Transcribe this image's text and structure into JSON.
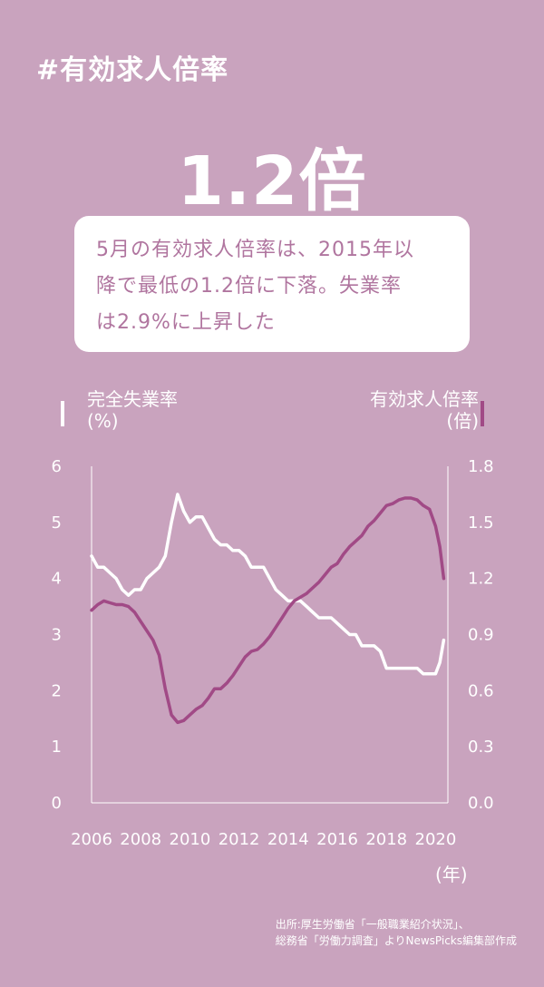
{
  "hashtag": "#有効求人倍率",
  "headline": "1.2倍",
  "summary": {
    "lines": [
      "5月の有効求人倍率は、2015年以",
      "降で最低の1.2倍に下落。失業率",
      "は2.9%に上昇した"
    ]
  },
  "legend": {
    "left": {
      "label": "完全失業率",
      "unit": "(%)"
    },
    "right": {
      "label": "有効求人倍率",
      "unit": "(倍)"
    }
  },
  "x_unit": "(年)",
  "source": {
    "line1": "出所:厚生労働省「一般職業紹介状況」、",
    "line2": "総務省「労働力調査」よりNewsPicks編集部作成"
  },
  "chart_data": {
    "type": "line",
    "x_ticks": [
      "2006",
      "2008",
      "2010",
      "2012",
      "2014",
      "2016",
      "2018",
      "2020"
    ],
    "xlim": [
      2006,
      2020.5
    ],
    "y_left": {
      "label": "完全失業率",
      "unit": "(%)",
      "ylim": [
        0,
        6
      ],
      "ticks": [
        "0",
        "1",
        "2",
        "3",
        "4",
        "5",
        "6"
      ]
    },
    "y_right": {
      "label": "有効求人倍率",
      "unit": "(倍)",
      "ylim": [
        0,
        1.8
      ],
      "ticks": [
        "0.0",
        "0.3",
        "0.6",
        "0.9",
        "1.2",
        "1.5",
        "1.8"
      ]
    },
    "series": [
      {
        "name": "完全失業率",
        "axis": "left",
        "color": "#ffffff",
        "x": [
          2006.0,
          2006.25,
          2006.5,
          2006.75,
          2007.0,
          2007.25,
          2007.5,
          2007.75,
          2008.0,
          2008.25,
          2008.5,
          2008.75,
          2009.0,
          2009.25,
          2009.5,
          2009.75,
          2010.0,
          2010.25,
          2010.5,
          2010.75,
          2011.0,
          2011.25,
          2011.5,
          2011.75,
          2012.0,
          2012.25,
          2012.5,
          2012.75,
          2013.0,
          2013.25,
          2013.5,
          2013.75,
          2014.0,
          2014.25,
          2014.5,
          2014.75,
          2015.0,
          2015.25,
          2015.5,
          2015.75,
          2016.0,
          2016.25,
          2016.5,
          2016.75,
          2017.0,
          2017.25,
          2017.5,
          2017.75,
          2018.0,
          2018.25,
          2018.5,
          2018.75,
          2019.0,
          2019.25,
          2019.5,
          2019.75,
          2020.0,
          2020.17,
          2020.33
        ],
        "values": [
          4.4,
          4.2,
          4.2,
          4.1,
          4.0,
          3.8,
          3.7,
          3.8,
          3.8,
          4.0,
          4.1,
          4.2,
          4.4,
          5.0,
          5.5,
          5.2,
          5.0,
          5.1,
          5.1,
          4.9,
          4.7,
          4.6,
          4.6,
          4.5,
          4.5,
          4.4,
          4.2,
          4.2,
          4.2,
          4.0,
          3.8,
          3.7,
          3.6,
          3.6,
          3.6,
          3.5,
          3.4,
          3.3,
          3.3,
          3.3,
          3.2,
          3.1,
          3.0,
          3.0,
          2.8,
          2.8,
          2.8,
          2.7,
          2.4,
          2.4,
          2.4,
          2.4,
          2.4,
          2.4,
          2.3,
          2.3,
          2.3,
          2.5,
          2.9
        ]
      },
      {
        "name": "有効求人倍率",
        "axis": "right",
        "color": "#a14a86",
        "x": [
          2006.0,
          2006.25,
          2006.5,
          2006.75,
          2007.0,
          2007.25,
          2007.5,
          2007.75,
          2008.0,
          2008.25,
          2008.5,
          2008.75,
          2009.0,
          2009.25,
          2009.5,
          2009.75,
          2010.0,
          2010.25,
          2010.5,
          2010.75,
          2011.0,
          2011.25,
          2011.5,
          2011.75,
          2012.0,
          2012.25,
          2012.5,
          2012.75,
          2013.0,
          2013.25,
          2013.5,
          2013.75,
          2014.0,
          2014.25,
          2014.5,
          2014.75,
          2015.0,
          2015.25,
          2015.5,
          2015.75,
          2016.0,
          2016.25,
          2016.5,
          2016.75,
          2017.0,
          2017.25,
          2017.5,
          2017.75,
          2018.0,
          2018.25,
          2018.5,
          2018.75,
          2019.0,
          2019.25,
          2019.5,
          2019.75,
          2020.0,
          2020.17,
          2020.33
        ],
        "values": [
          1.03,
          1.06,
          1.08,
          1.07,
          1.06,
          1.06,
          1.05,
          1.02,
          0.97,
          0.92,
          0.87,
          0.79,
          0.61,
          0.47,
          0.43,
          0.44,
          0.47,
          0.5,
          0.52,
          0.56,
          0.61,
          0.61,
          0.64,
          0.68,
          0.73,
          0.78,
          0.81,
          0.82,
          0.85,
          0.89,
          0.94,
          0.99,
          1.04,
          1.08,
          1.1,
          1.12,
          1.15,
          1.18,
          1.22,
          1.26,
          1.28,
          1.33,
          1.37,
          1.4,
          1.43,
          1.48,
          1.51,
          1.55,
          1.59,
          1.6,
          1.62,
          1.63,
          1.63,
          1.62,
          1.59,
          1.57,
          1.48,
          1.37,
          1.2
        ]
      }
    ]
  }
}
